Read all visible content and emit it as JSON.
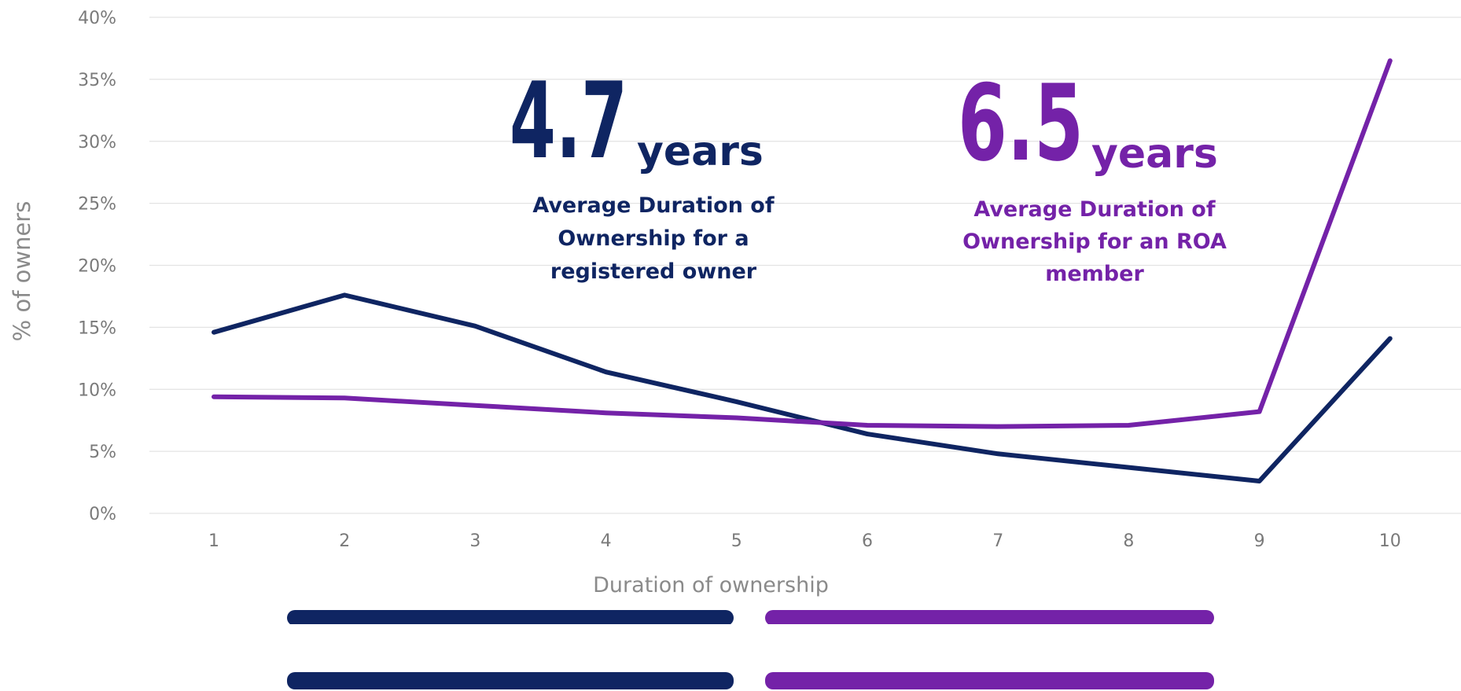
{
  "colors": {
    "registered": "#0f2562",
    "roa": "#7422a8",
    "grid": "#e3e3e3",
    "tick": "#7a7a7a"
  },
  "chart_data": {
    "type": "line",
    "x": [
      1,
      2,
      3,
      4,
      5,
      6,
      7,
      8,
      9,
      10
    ],
    "xlabel": "Duration of ownership",
    "ylabel": "% of owners",
    "ylim": [
      0,
      40
    ],
    "yticks": [
      "0%",
      "5%",
      "10%",
      "15%",
      "20%",
      "25%",
      "30%",
      "35%",
      "40%"
    ],
    "xticks": [
      "1",
      "2",
      "3",
      "4",
      "5",
      "6",
      "7",
      "8",
      "9",
      "10"
    ],
    "grid": true,
    "legend": "bottom",
    "series": [
      {
        "color": "#0f2562",
        "values": [
          14.6,
          17.6,
          15.1,
          11.4,
          9.0,
          6.4,
          4.8,
          3.7,
          2.6,
          14.1
        ]
      },
      {
        "color": "#7422a8",
        "values": [
          9.4,
          9.3,
          8.7,
          8.1,
          7.7,
          7.1,
          7.0,
          7.1,
          8.2,
          36.5
        ]
      }
    ]
  },
  "annotations": {
    "registered": {
      "number": "4.7",
      "unit": "years",
      "desc": [
        "Average Duration of",
        "Ownership for a",
        "registered owner"
      ]
    },
    "roa": {
      "number": "6.5",
      "unit": "years",
      "desc": [
        "Average Duration of",
        "Ownership for an ROA",
        "member"
      ]
    }
  }
}
